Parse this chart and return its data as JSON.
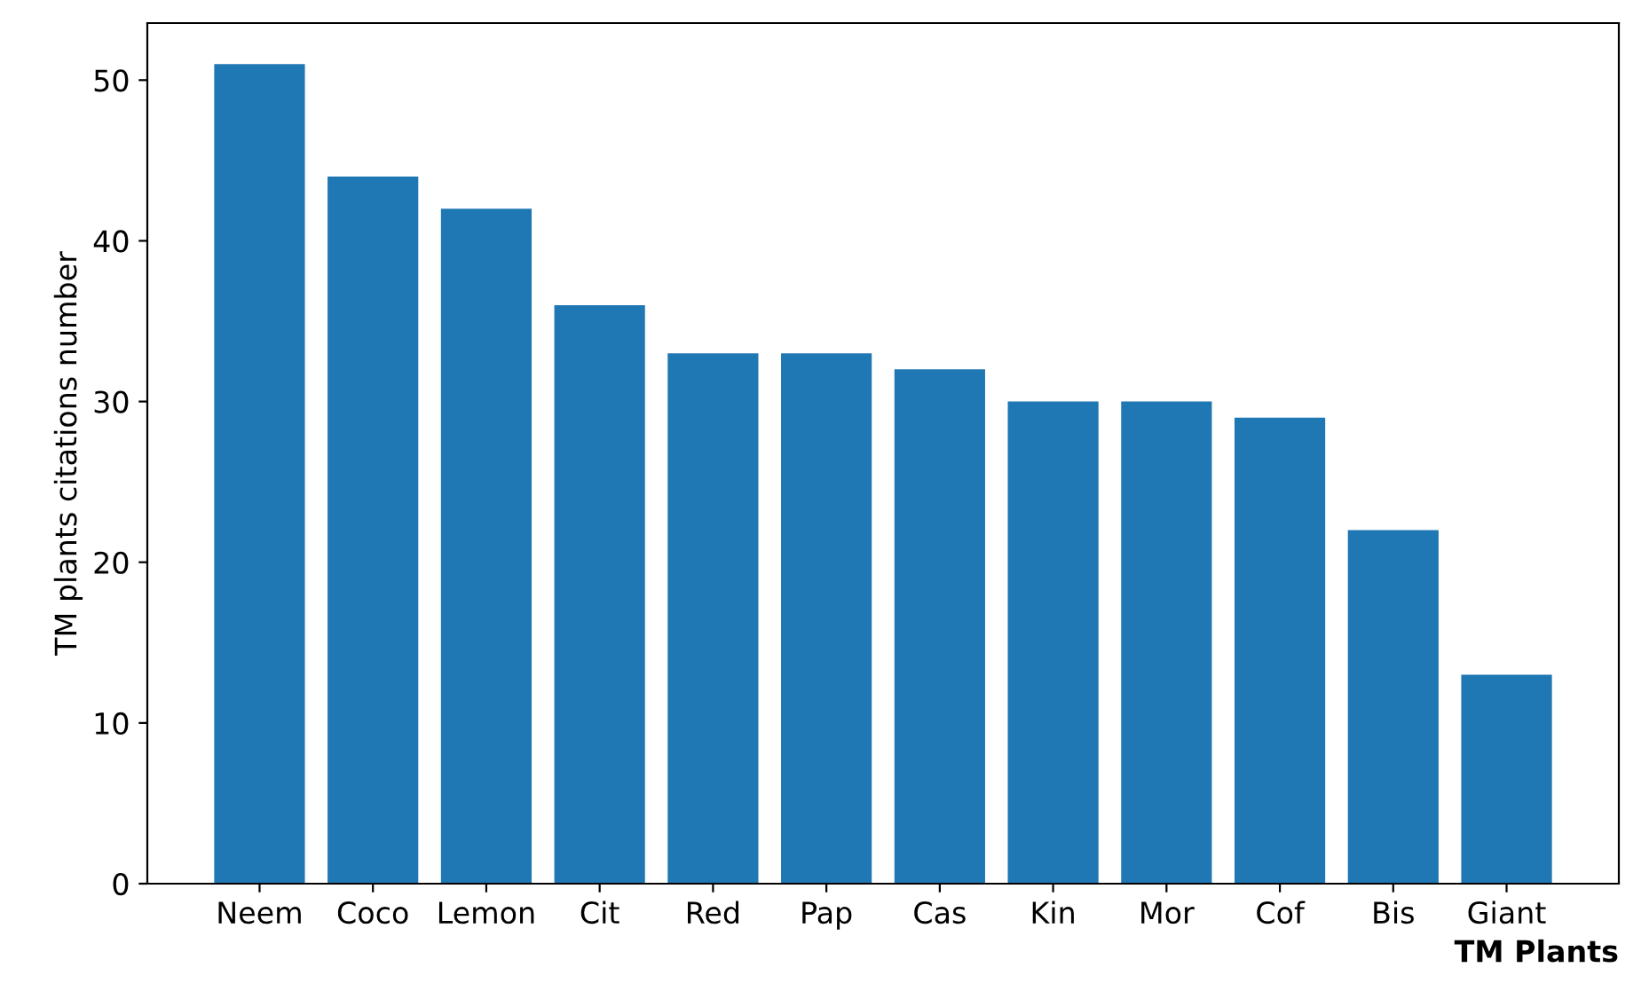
{
  "chart_data": {
    "type": "bar",
    "xlabel": "TM Plants",
    "ylabel": "TM plants citations number",
    "categories": [
      "Neem",
      "Coco",
      "Lemon",
      "Cit",
      "Red",
      "Pap",
      "Cas",
      "Kin",
      "Mor",
      "Cof",
      "Bis",
      "Giant"
    ],
    "values": [
      51,
      44,
      42,
      36,
      33,
      33,
      32,
      30,
      30,
      29,
      22,
      13
    ],
    "color": "#1f77b4",
    "ylim": [
      0,
      53.55
    ],
    "yticks": [
      0,
      10,
      20,
      30,
      40,
      50
    ],
    "grid": false
  }
}
